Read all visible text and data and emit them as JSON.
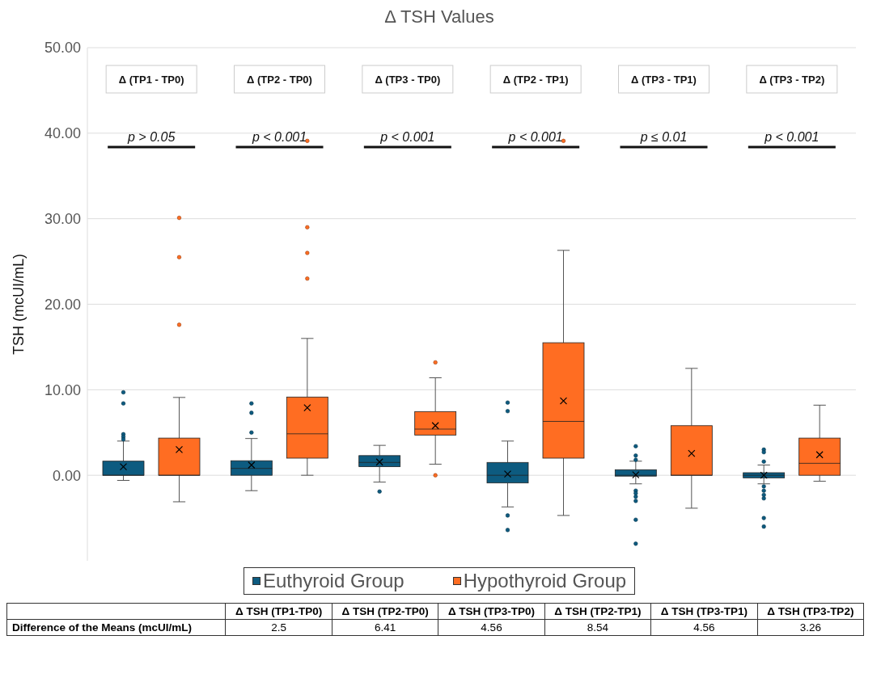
{
  "chart_data": {
    "type": "box",
    "title": "Δ TSH Values",
    "ylabel": "TSH (mcUI/mL)",
    "categories": [
      "Δ (TP1 - TP0)",
      "Δ (TP2 - TP0)",
      "Δ (TP3 - TP0)",
      "Δ (TP2 - TP1)",
      "Δ (TP3 - TP1)",
      "Δ (TP3 - TP2)"
    ],
    "series": [
      {
        "name": "Euthyroid Group",
        "color": "#0d5b80",
        "boxes": [
          {
            "low": -0.6,
            "q1": 0,
            "median": 0,
            "q3": 1.65,
            "high": 4.0,
            "mean": 1.0,
            "outliers": [
              9.7,
              8.4,
              4.8,
              4.5,
              4.2
            ]
          },
          {
            "low": -1.8,
            "q1": 0,
            "median": 0.8,
            "q3": 1.7,
            "high": 4.3,
            "mean": 1.2,
            "outliers": [
              8.4,
              7.3,
              5.0
            ]
          },
          {
            "low": -0.8,
            "q1": 1.0,
            "median": 1.5,
            "q3": 2.3,
            "high": 3.5,
            "mean": 1.55,
            "outliers": [
              -1.9
            ]
          },
          {
            "low": -3.7,
            "q1": -0.9,
            "median": 0,
            "q3": 1.5,
            "high": 4.0,
            "mean": 0.15,
            "outliers": [
              8.5,
              7.5,
              -4.7,
              -6.4
            ]
          },
          {
            "low": -1.0,
            "q1": -0.1,
            "median": 0,
            "q3": 0.65,
            "high": 1.65,
            "mean": 0.05,
            "outliers": [
              3.4,
              2.3,
              1.8,
              -1.8,
              -2.1,
              -2.5,
              -3.0,
              -5.2,
              -8.0
            ]
          },
          {
            "low": -1.0,
            "q1": -0.3,
            "median": 0,
            "q3": 0.3,
            "high": 1.2,
            "mean": 0,
            "outliers": [
              3.0,
              2.7,
              1.6,
              -1.3,
              -1.8,
              -2.3,
              -2.7,
              -5.0,
              -6.0
            ]
          }
        ]
      },
      {
        "name": "Hypothyroid Group",
        "color": "#ff6d22",
        "boxes": [
          {
            "low": -3.1,
            "q1": 0,
            "median": 0,
            "q3": 4.35,
            "high": 9.1,
            "mean": 3.0,
            "outliers": [
              30.1,
              25.5,
              17.6
            ]
          },
          {
            "low": 0,
            "q1": 2.0,
            "median": 4.85,
            "q3": 9.15,
            "high": 16.0,
            "mean": 7.9,
            "outliers": [
              39.1,
              29.0,
              26.0,
              23.0
            ]
          },
          {
            "low": 1.3,
            "q1": 4.7,
            "median": 5.4,
            "q3": 7.45,
            "high": 11.4,
            "mean": 5.8,
            "outliers": [
              13.2,
              0
            ]
          },
          {
            "low": -4.7,
            "q1": 2.0,
            "median": 6.3,
            "q3": 15.5,
            "high": 26.3,
            "mean": 8.7,
            "outliers": [
              39.1
            ]
          },
          {
            "low": -3.85,
            "q1": 0,
            "median": 0,
            "q3": 5.8,
            "high": 12.5,
            "mean": 2.55
          },
          {
            "low": -0.7,
            "q1": 0,
            "median": 1.4,
            "q3": 4.35,
            "high": 8.2,
            "mean": 2.4
          }
        ]
      }
    ],
    "ylim": [
      -10,
      50
    ],
    "yticks": [
      {
        "value": 0,
        "label": "0.00"
      },
      {
        "value": 10,
        "label": "10.00"
      },
      {
        "value": 20,
        "label": "20.00"
      },
      {
        "value": 30,
        "label": "30.00"
      },
      {
        "value": 40,
        "label": "40.00"
      },
      {
        "value": 50,
        "label": "50.00"
      }
    ],
    "grid": "y",
    "legend": "bottom",
    "marker": "cross",
    "annotations": [
      "p > 0.05",
      "p < 0.001",
      "p < 0.001",
      "p < 0.001",
      "p ≤ 0.01",
      "p < 0.001",
      "Difference of the Means (mcUI/mL)",
      "Δ TSH (TP1-TP0)",
      "Δ TSH (TP2-TP0)",
      "Δ TSH (TP3-TP0)",
      "Δ TSH (TP2-TP1)",
      "Δ TSH (TP3-TP1)",
      "Δ TSH (TP3-TP2)",
      "2.5",
      "6.41",
      "4.56",
      "8.54",
      "4.56",
      "3.26"
    ]
  }
}
